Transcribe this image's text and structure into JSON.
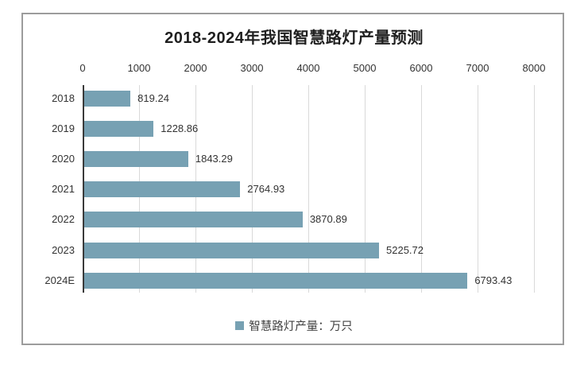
{
  "title": "2018-2024年我国智慧路灯产量预测",
  "colors": {
    "bar": "#77A1B3",
    "grid": "#D9D9D9",
    "axis_line": "#3A3A3A",
    "frame_border": "#9C9C9C",
    "title_text": "#1F1F1F",
    "label_text": "#333333"
  },
  "legend": {
    "label": "智慧路灯产量：万只",
    "marker_color": "#77A1B3",
    "marker_icon": "square-icon"
  },
  "chart_data": {
    "type": "bar",
    "orientation": "horizontal",
    "title": "2018-2024年我国智慧路灯产量预测",
    "categories": [
      "2018",
      "2019",
      "2020",
      "2021",
      "2022",
      "2023",
      "2024E"
    ],
    "values": [
      819.24,
      1228.86,
      1843.29,
      2764.93,
      3870.89,
      5225.72,
      6793.43
    ],
    "value_labels": [
      "819.24",
      "1228.86",
      "1843.29",
      "2764.93",
      "3870.89",
      "5225.72",
      "6793.43"
    ],
    "xlabel": "",
    "ylabel": "",
    "xlim": [
      0,
      8000
    ],
    "x_ticks": [
      0,
      1000,
      2000,
      3000,
      4000,
      5000,
      6000,
      7000,
      8000
    ],
    "x_axis_position": "top",
    "grid": true,
    "legend": [
      "智慧路灯产量：万只"
    ],
    "legend_position": "bottom",
    "series_name": "智慧路灯产量：万只",
    "unit": "万只"
  }
}
